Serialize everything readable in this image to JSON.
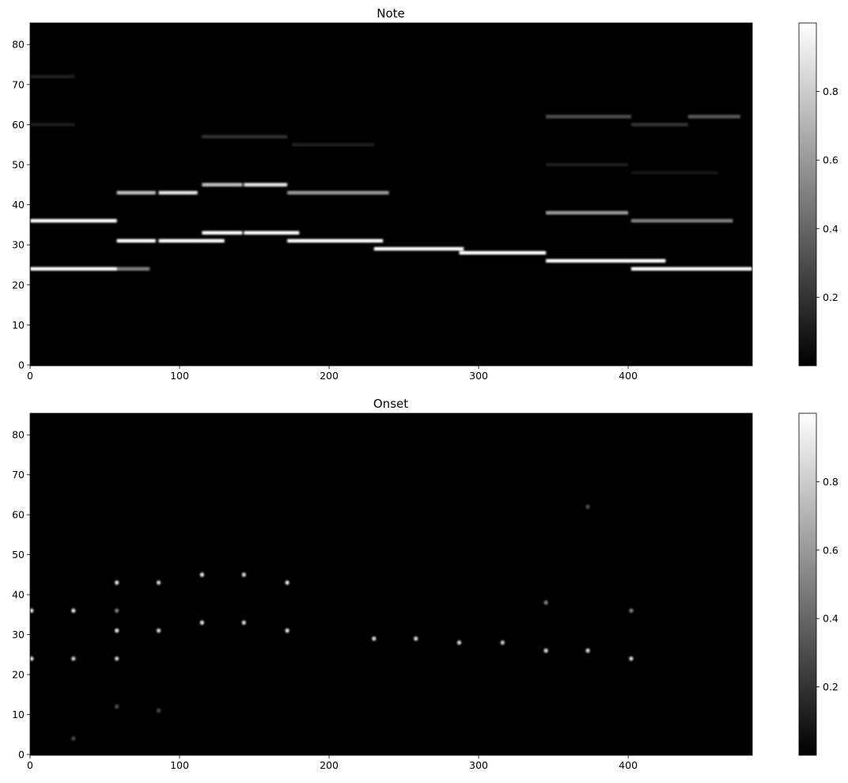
{
  "chart_data": [
    {
      "type": "heatmap",
      "title": "Note",
      "xlim": [
        0,
        483
      ],
      "ylim": [
        0,
        84
      ],
      "xticks": [
        0,
        100,
        200,
        300,
        400
      ],
      "yticks": [
        0,
        10,
        20,
        30,
        40,
        50,
        60,
        70,
        80
      ],
      "colormap": "gray",
      "colorbar": {
        "range": [
          0,
          1
        ],
        "ticks": [
          0.2,
          0.4,
          0.6,
          0.8
        ]
      },
      "segments": [
        {
          "pitch": 36,
          "start": 0,
          "end": 58,
          "value": 1.0
        },
        {
          "pitch": 24,
          "start": 0,
          "end": 58,
          "value": 1.0
        },
        {
          "pitch": 24,
          "start": 58,
          "end": 80,
          "value": 0.5
        },
        {
          "pitch": 31,
          "start": 58,
          "end": 84,
          "value": 1.0
        },
        {
          "pitch": 31,
          "start": 86,
          "end": 130,
          "value": 1.0
        },
        {
          "pitch": 43,
          "start": 58,
          "end": 84,
          "value": 0.75
        },
        {
          "pitch": 43,
          "start": 86,
          "end": 112,
          "value": 0.9
        },
        {
          "pitch": 33,
          "start": 115,
          "end": 142,
          "value": 1.0
        },
        {
          "pitch": 33,
          "start": 143,
          "end": 180,
          "value": 1.0
        },
        {
          "pitch": 45,
          "start": 115,
          "end": 142,
          "value": 0.75
        },
        {
          "pitch": 45,
          "start": 143,
          "end": 172,
          "value": 0.9
        },
        {
          "pitch": 31,
          "start": 172,
          "end": 236,
          "value": 1.0
        },
        {
          "pitch": 43,
          "start": 172,
          "end": 240,
          "value": 0.6
        },
        {
          "pitch": 29,
          "start": 230,
          "end": 290,
          "value": 1.0
        },
        {
          "pitch": 28,
          "start": 287,
          "end": 345,
          "value": 1.0
        },
        {
          "pitch": 26,
          "start": 345,
          "end": 425,
          "value": 1.0
        },
        {
          "pitch": 38,
          "start": 345,
          "end": 400,
          "value": 0.6
        },
        {
          "pitch": 62,
          "start": 345,
          "end": 402,
          "value": 0.3
        },
        {
          "pitch": 24,
          "start": 402,
          "end": 483,
          "value": 1.0
        },
        {
          "pitch": 36,
          "start": 402,
          "end": 470,
          "value": 0.5
        },
        {
          "pitch": 60,
          "start": 402,
          "end": 440,
          "value": 0.2
        },
        {
          "pitch": 62,
          "start": 440,
          "end": 475,
          "value": 0.35
        },
        {
          "pitch": 57,
          "start": 115,
          "end": 172,
          "value": 0.2
        },
        {
          "pitch": 55,
          "start": 175,
          "end": 230,
          "value": 0.12
        },
        {
          "pitch": 72,
          "start": 0,
          "end": 30,
          "value": 0.12
        },
        {
          "pitch": 60,
          "start": 0,
          "end": 30,
          "value": 0.12
        },
        {
          "pitch": 50,
          "start": 345,
          "end": 400,
          "value": 0.1
        },
        {
          "pitch": 48,
          "start": 402,
          "end": 460,
          "value": 0.08
        }
      ]
    },
    {
      "type": "heatmap",
      "title": "Onset",
      "xlim": [
        0,
        483
      ],
      "ylim": [
        0,
        84
      ],
      "xticks": [
        0,
        100,
        200,
        300,
        400
      ],
      "yticks": [
        0,
        10,
        20,
        30,
        40,
        50,
        60,
        70,
        80
      ],
      "colormap": "gray",
      "colorbar": {
        "range": [
          0,
          1
        ],
        "ticks": [
          0.2,
          0.4,
          0.6,
          0.8
        ]
      },
      "onsets": [
        {
          "pitch": 36,
          "time": 1,
          "value": 0.9
        },
        {
          "pitch": 24,
          "time": 1,
          "value": 0.9
        },
        {
          "pitch": 36,
          "time": 29,
          "value": 0.9
        },
        {
          "pitch": 24,
          "time": 29,
          "value": 0.8
        },
        {
          "pitch": 31,
          "time": 58,
          "value": 0.9
        },
        {
          "pitch": 43,
          "time": 58,
          "value": 0.9
        },
        {
          "pitch": 24,
          "time": 58,
          "value": 0.8
        },
        {
          "pitch": 36,
          "time": 58,
          "value": 0.5
        },
        {
          "pitch": 31,
          "time": 86,
          "value": 0.85
        },
        {
          "pitch": 43,
          "time": 86,
          "value": 0.85
        },
        {
          "pitch": 33,
          "time": 115,
          "value": 0.9
        },
        {
          "pitch": 45,
          "time": 115,
          "value": 0.9
        },
        {
          "pitch": 33,
          "time": 143,
          "value": 0.85
        },
        {
          "pitch": 45,
          "time": 143,
          "value": 0.85
        },
        {
          "pitch": 31,
          "time": 172,
          "value": 0.9
        },
        {
          "pitch": 43,
          "time": 172,
          "value": 0.9
        },
        {
          "pitch": 29,
          "time": 230,
          "value": 0.85
        },
        {
          "pitch": 29,
          "time": 258,
          "value": 0.85
        },
        {
          "pitch": 28,
          "time": 287,
          "value": 0.85
        },
        {
          "pitch": 28,
          "time": 316,
          "value": 0.8
        },
        {
          "pitch": 26,
          "time": 345,
          "value": 0.85
        },
        {
          "pitch": 38,
          "time": 345,
          "value": 0.5
        },
        {
          "pitch": 26,
          "time": 373,
          "value": 0.85
        },
        {
          "pitch": 24,
          "time": 402,
          "value": 0.85
        },
        {
          "pitch": 36,
          "time": 402,
          "value": 0.5
        },
        {
          "pitch": 62,
          "time": 373,
          "value": 0.3
        },
        {
          "pitch": 12,
          "time": 58,
          "value": 0.3
        },
        {
          "pitch": 11,
          "time": 86,
          "value": 0.3
        },
        {
          "pitch": 4,
          "time": 29,
          "value": 0.3
        }
      ]
    }
  ]
}
